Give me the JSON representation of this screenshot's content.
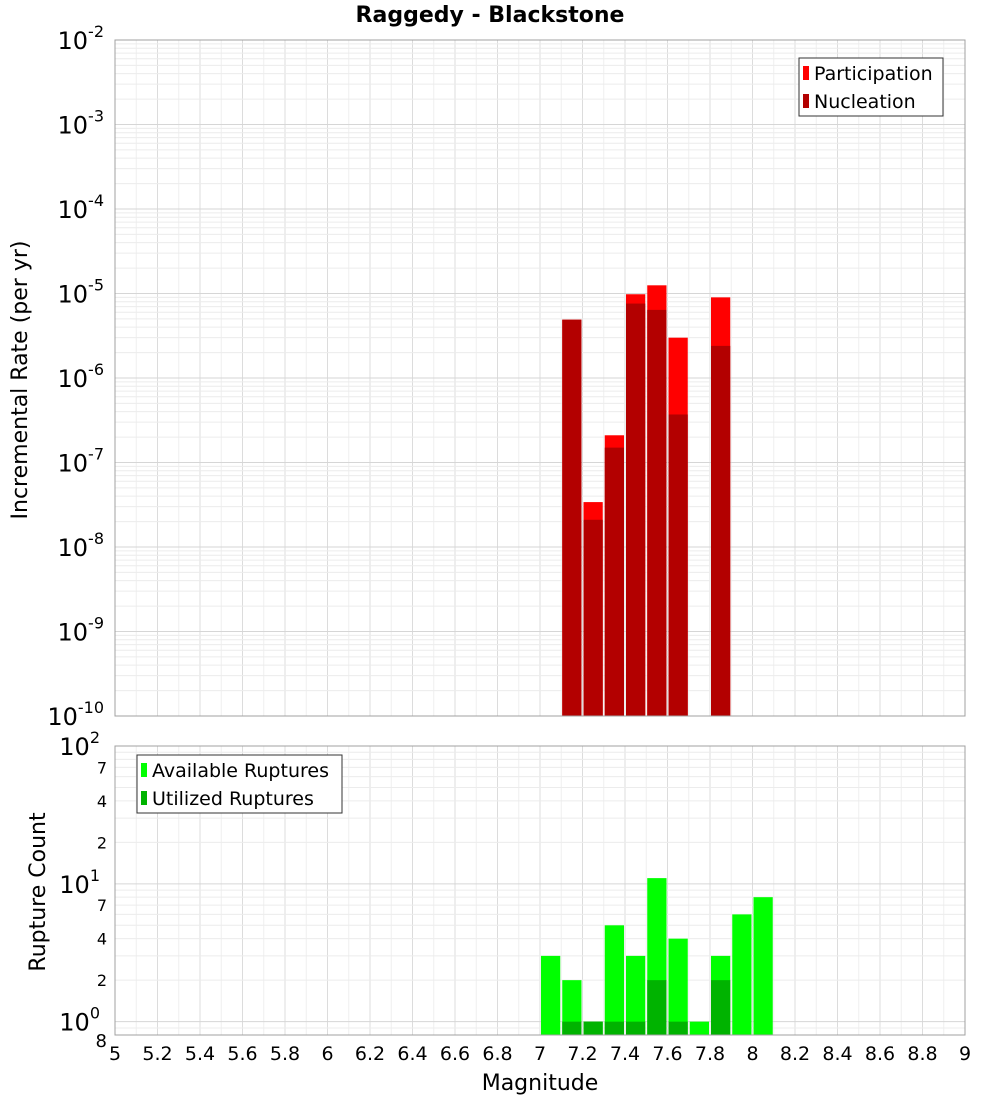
{
  "title": "Raggedy - Blackstone",
  "xlabel": "Magnitude",
  "x_ticks": [
    "5",
    "5.2",
    "5.4",
    "5.6",
    "5.8",
    "6",
    "6.2",
    "6.4",
    "6.6",
    "6.8",
    "7",
    "7.2",
    "7.4",
    "7.6",
    "7.8",
    "8",
    "8.2",
    "8.4",
    "8.6",
    "8.8",
    "9"
  ],
  "chart_data": [
    {
      "type": "bar",
      "title": "Raggedy - Blackstone",
      "xlabel": "Magnitude",
      "ylabel": "Incremental Rate (per yr)",
      "xlim": [
        5,
        9
      ],
      "ylim": [
        1e-10,
        0.01
      ],
      "y_scale": "log",
      "bar_width": 0.1,
      "grid": true,
      "legend_position": "top-right",
      "y_tick_exponents": [
        "-2",
        "-3",
        "-4",
        "-5",
        "-6",
        "-7",
        "-8",
        "-9",
        "-10"
      ],
      "series": [
        {
          "name": "Participation",
          "color": "#ff0000",
          "x": [
            7.15,
            7.25,
            7.35,
            7.45,
            7.55,
            7.65,
            7.85
          ],
          "values": [
            4.9e-06,
            3.4e-08,
            2.1e-07,
            9.8e-06,
            1.25e-05,
            3e-06,
            9e-06
          ]
        },
        {
          "name": "Nucleation",
          "color": "#b30000",
          "x": [
            7.15,
            7.25,
            7.35,
            7.45,
            7.55,
            7.65,
            7.85
          ],
          "values": [
            4.9e-06,
            2.1e-08,
            1.5e-07,
            7.6e-06,
            6.4e-06,
            3.7e-07,
            2.4e-06
          ]
        }
      ]
    },
    {
      "type": "bar",
      "xlabel": "Magnitude",
      "ylabel": "Rupture Count",
      "xlim": [
        5,
        9
      ],
      "ylim": [
        0.8,
        100
      ],
      "y_scale": "log",
      "bar_width": 0.1,
      "grid": true,
      "legend_position": "top-left",
      "y_major_exponents": [
        "0",
        "1",
        "2"
      ],
      "y_minor_labels": [
        "2",
        "4",
        "7",
        "2",
        "4",
        "7"
      ],
      "y_bottom_label": "8",
      "series": [
        {
          "name": "Available Ruptures",
          "color": "#00ff00",
          "x": [
            7.05,
            7.15,
            7.25,
            7.35,
            7.45,
            7.55,
            7.65,
            7.75,
            7.85,
            7.95,
            8.05
          ],
          "values": [
            3,
            2,
            1,
            5,
            3,
            11,
            4,
            1,
            3,
            6,
            8
          ]
        },
        {
          "name": "Utilized Ruptures",
          "color": "#00b300",
          "x": [
            7.15,
            7.25,
            7.35,
            7.45,
            7.55,
            7.65,
            7.85
          ],
          "values": [
            1,
            1,
            1,
            1,
            2,
            1,
            2
          ]
        }
      ]
    }
  ]
}
